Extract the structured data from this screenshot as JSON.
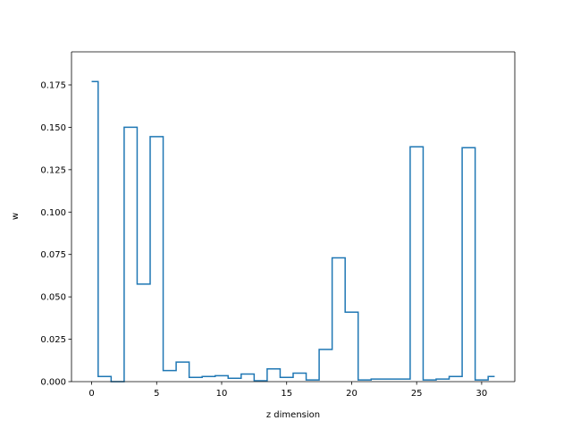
{
  "chart_data": {
    "type": "line",
    "style": "step-histogram",
    "title": "",
    "xlabel": "z dimension",
    "ylabel": "w",
    "xlim": [
      -1.55,
      32.55
    ],
    "ylim": [
      0,
      0.1945
    ],
    "xticks": [
      0,
      5,
      10,
      15,
      20,
      25,
      30
    ],
    "yticks": [
      0.0,
      0.025,
      0.05,
      0.075,
      0.1,
      0.125,
      0.15,
      0.175
    ],
    "ytick_labels": [
      "0.000",
      "0.025",
      "0.050",
      "0.075",
      "0.100",
      "0.125",
      "0.150",
      "0.175"
    ],
    "grid": false,
    "line_color": "#1f77b4",
    "series": [
      {
        "x": [
          0,
          1,
          2,
          3,
          4,
          5,
          6,
          7,
          8,
          9,
          10,
          11,
          12,
          13,
          14,
          15,
          16,
          17,
          18,
          19,
          20,
          21,
          22,
          23,
          24,
          25,
          26,
          27,
          28,
          29,
          30,
          31
        ],
        "values": [
          0.177,
          0.003,
          0.0,
          0.15,
          0.0575,
          0.1445,
          0.0065,
          0.0115,
          0.0025,
          0.003,
          0.0035,
          0.002,
          0.0045,
          0.0005,
          0.0075,
          0.0025,
          0.005,
          0.001,
          0.019,
          0.073,
          0.041,
          0.001,
          0.0015,
          0.0015,
          0.0015,
          0.1385,
          0.001,
          0.0015,
          0.003,
          0.138,
          0.001,
          0.003
        ]
      }
    ]
  }
}
